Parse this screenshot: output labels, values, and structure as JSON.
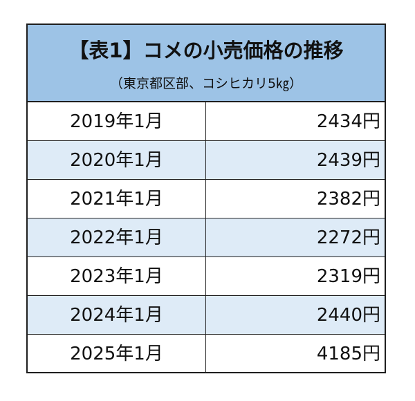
{
  "table": {
    "title": "【表1】コメの小売価格の推移",
    "subtitle": "（東京都区部、コシヒカリ5㎏）",
    "rows": [
      {
        "year": "2019年1月",
        "price": "2434円"
      },
      {
        "year": "2020年1月",
        "price": "2439円"
      },
      {
        "year": "2021年1月",
        "price": "2382円"
      },
      {
        "year": "2022年1月",
        "price": "2272円"
      },
      {
        "year": "2023年1月",
        "price": "2319円"
      },
      {
        "year": "2024年1月",
        "price": "2440円"
      },
      {
        "year": "2025年1月",
        "price": "4185円"
      }
    ]
  },
  "colors": {
    "header_bg": "#9dc3e6",
    "shaded_row_bg": "#deebf7",
    "border": "#1e1e1e"
  }
}
